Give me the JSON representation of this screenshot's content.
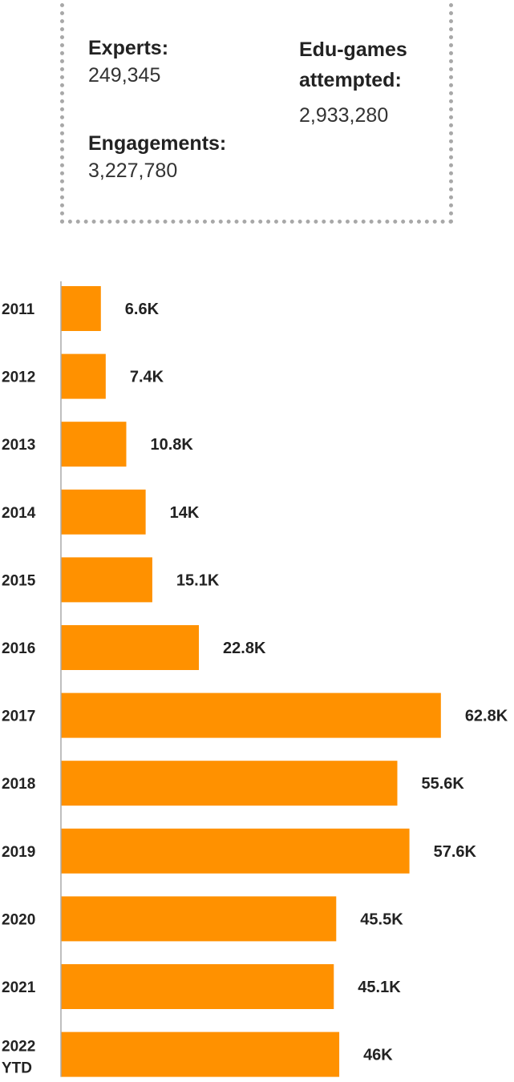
{
  "stats": {
    "experts": {
      "label": "Experts:",
      "value": "249,345"
    },
    "engagements": {
      "label": "Engagements:",
      "value": "3,227,780"
    },
    "edugames": {
      "label": "Edu-games attempted:",
      "value": "2,933,280"
    }
  },
  "colors": {
    "bar": "#ff9100",
    "axis": "#aaaaaa",
    "box_border": "#a8a8a8"
  },
  "chart_data": {
    "type": "bar",
    "orientation": "horizontal",
    "categories": [
      "2011",
      "2012",
      "2013",
      "2014",
      "2015",
      "2016",
      "2017",
      "2018",
      "2019",
      "2020",
      "2021",
      "2022 YTD"
    ],
    "values": [
      6.6,
      7.4,
      10.8,
      14,
      15.1,
      22.8,
      62.8,
      55.6,
      57.6,
      45.5,
      45.1,
      46
    ],
    "value_labels": [
      "6.6K",
      "7.4K",
      "10.8K",
      "14K",
      "15.1K",
      "22.8K",
      "62.8K",
      "55.6K",
      "57.6K",
      "45.5K",
      "45.1K",
      "46K"
    ],
    "unit": "K",
    "xlim": [
      0,
      65
    ],
    "grid": false,
    "legend": "none"
  }
}
